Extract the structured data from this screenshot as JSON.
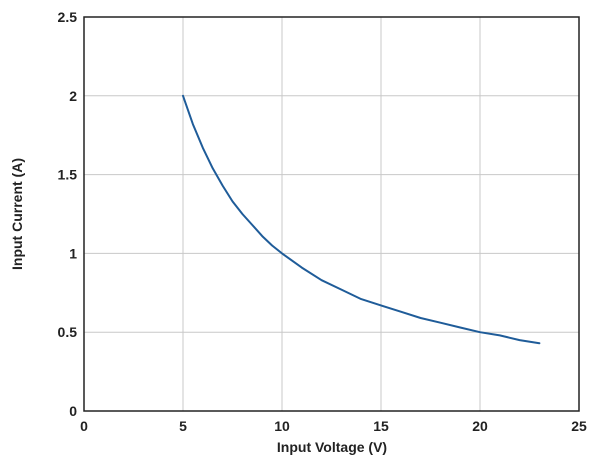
{
  "chart_data": {
    "type": "line",
    "title": "",
    "xlabel": "Input Voltage (V)",
    "ylabel": "Input Current (A)",
    "xlim": [
      0,
      25
    ],
    "ylim": [
      0,
      2.5
    ],
    "x_ticks": [
      0,
      5,
      10,
      15,
      20,
      25
    ],
    "x_tick_labels": [
      "0",
      "5",
      "10",
      "15",
      "20",
      "25"
    ],
    "y_ticks": [
      0,
      0.5,
      1,
      1.5,
      2,
      2.5
    ],
    "y_tick_labels": [
      "0",
      "0.5",
      "1",
      "1.5",
      "2",
      "2.5"
    ],
    "grid": true,
    "series": [
      {
        "color": "#1f5c99",
        "x": [
          5,
          5.5,
          6,
          6.5,
          7,
          7.5,
          8,
          8.5,
          9,
          9.5,
          10,
          11,
          12,
          13,
          14,
          15,
          16,
          17,
          18,
          19,
          20,
          21,
          22,
          23
        ],
        "y": [
          2.0,
          1.82,
          1.67,
          1.54,
          1.43,
          1.33,
          1.25,
          1.18,
          1.11,
          1.05,
          1.0,
          0.91,
          0.83,
          0.77,
          0.71,
          0.67,
          0.63,
          0.59,
          0.56,
          0.53,
          0.5,
          0.48,
          0.45,
          0.43
        ]
      }
    ],
    "colors": {
      "grid": "#c8c8c8",
      "axis": "#222222",
      "text": "#222222"
    }
  }
}
